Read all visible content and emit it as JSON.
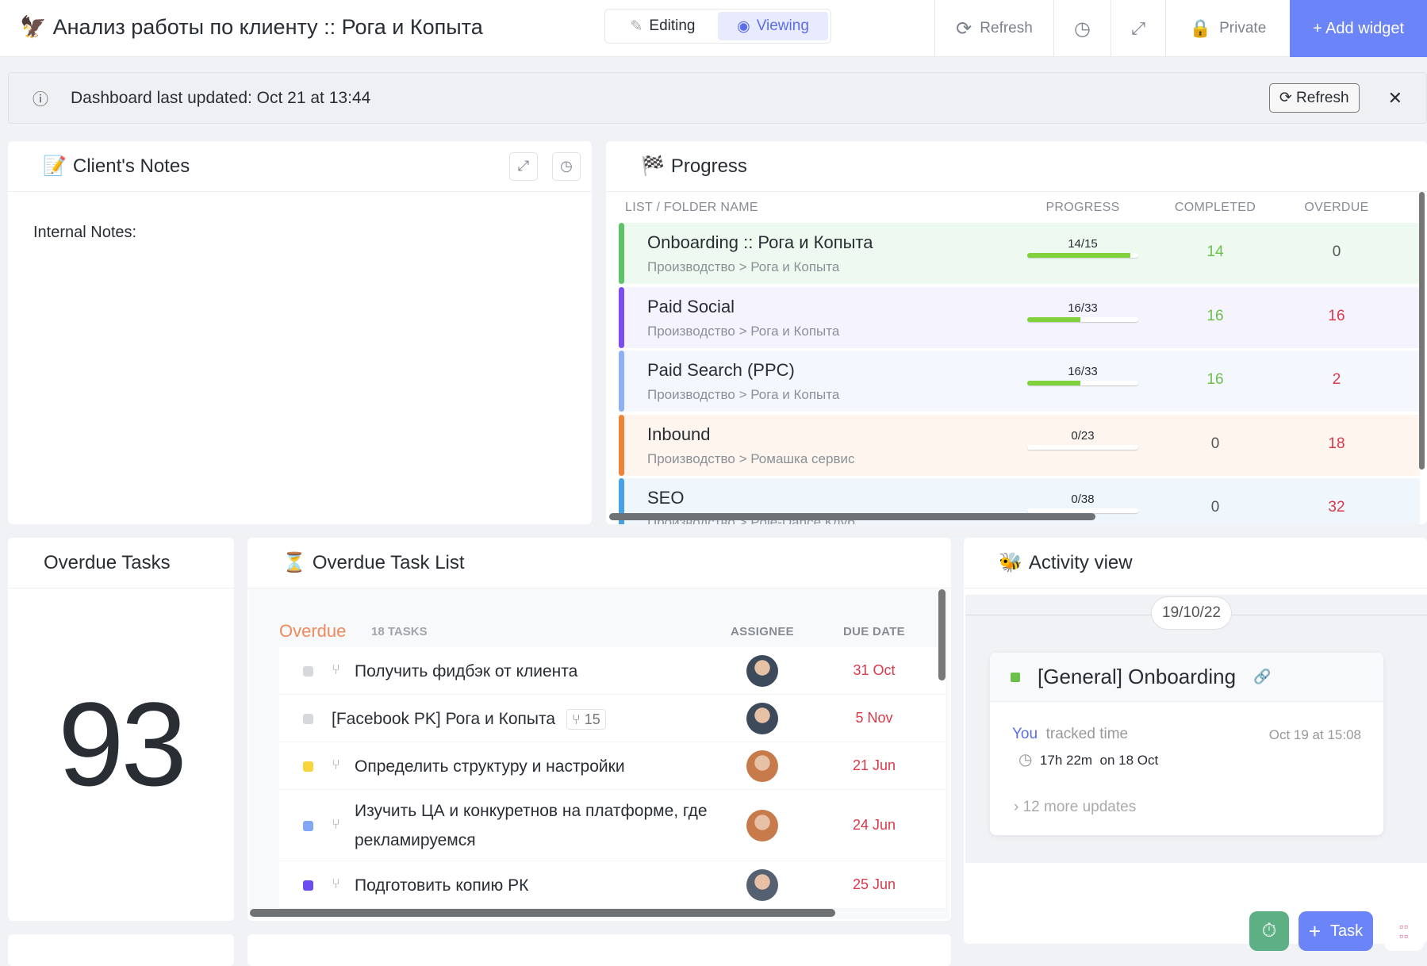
{
  "header": {
    "title": "Анализ работы по клиенту :: Рога и Копыта",
    "logo_icon": "eagle-icon",
    "mode_editing": "Editing",
    "mode_viewing": "Viewing",
    "refresh": "Refresh",
    "private": "Private",
    "add_widget": "+ Add widget",
    "accent": "#6b84f7"
  },
  "banner": {
    "text": "Dashboard last updated: Oct 21 at 13:44",
    "refresh": "Refresh"
  },
  "notes": {
    "title": "Client's Notes",
    "body": "Internal Notes:"
  },
  "progress": {
    "title": "Progress",
    "columns": [
      "LIST / FOLDER NAME",
      "PROGRESS",
      "COMPLETED",
      "OVERDUE"
    ],
    "rows": [
      {
        "name": "Onboarding :: Рога и Копыта",
        "path": "Производство > Рога и Копыта",
        "progress": "14/15",
        "pct": 93,
        "completed": "14",
        "overdue": "0",
        "color": "#5cc36a",
        "bg": "#eefaf0"
      },
      {
        "name": "Paid Social",
        "path": "Производство > Рога и Копыта",
        "progress": "16/33",
        "pct": 48,
        "completed": "16",
        "overdue": "16",
        "color": "#7b4cf0",
        "bg": "#f5f3fd"
      },
      {
        "name": "Paid Search (PPC)",
        "path": "Производство > Рога и Копыта",
        "progress": "16/33",
        "pct": 48,
        "completed": "16",
        "overdue": "2",
        "color": "#8fb0f5",
        "bg": "#f5f7fe"
      },
      {
        "name": "Inbound",
        "path": "Производство > Ромашка сервис",
        "progress": "0/23",
        "pct": 0,
        "completed": "0",
        "overdue": "18",
        "color": "#ee8236",
        "bg": "#fdf5ee"
      },
      {
        "name": "SEO",
        "path": "Производство > Pole-Dance Клуб",
        "progress": "0/38",
        "pct": 0,
        "completed": "0",
        "overdue": "32",
        "color": "#45a2e6",
        "bg": "#eff7fd"
      }
    ]
  },
  "overdue_count": {
    "title": "Overdue Tasks",
    "value": "93"
  },
  "task_list": {
    "title": "Overdue Task List",
    "group": "Overdue",
    "count": "18 TASKS",
    "col_assignee": "ASSIGNEE",
    "col_due": "DUE DATE",
    "tasks": [
      {
        "name": "Получить фидбэк от клиента",
        "due": "31 Oct",
        "status": "#d6d8dc",
        "subtask": true
      },
      {
        "name": "[Facebook PK] Рога и Копыта",
        "due": "5 Nov",
        "status": "#d6d8dc",
        "subtask": false,
        "subcount": "15"
      },
      {
        "name": "Определить структуру и настройки",
        "due": "21 Jun",
        "status": "#f5d53b",
        "subtask": true
      },
      {
        "name": "Изучить ЦА и конкуретнов на платформе, где рекламируемся",
        "due": "24 Jun",
        "status": "#84a7f5",
        "subtask": true
      },
      {
        "name": "Подготовить копию РК",
        "due": "25 Jun",
        "status": "#6a4cf0",
        "subtask": true
      }
    ]
  },
  "activity": {
    "title": "Activity view",
    "date": "19/10/22",
    "task": "[General] Onboarding",
    "who": "You",
    "action": "tracked time",
    "when": "Oct 19 at 15:08",
    "tracked": "17h 22m",
    "on": "on 18 Oct",
    "more": "12 more updates"
  },
  "fab": {
    "task": "Task"
  }
}
